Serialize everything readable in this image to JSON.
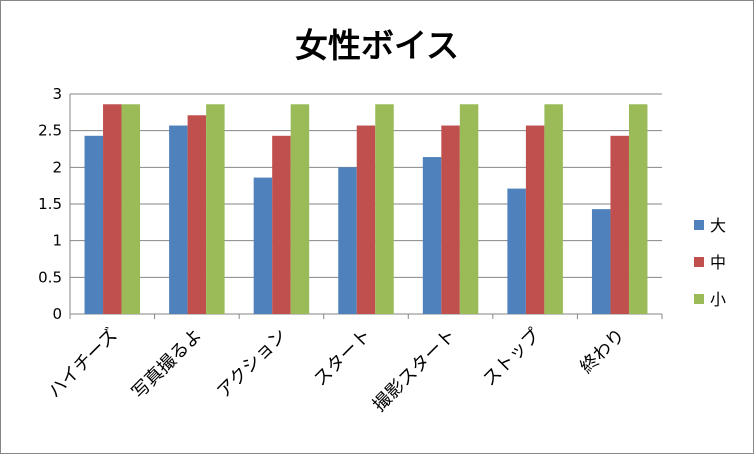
{
  "chart_data": {
    "type": "bar",
    "title": "女性ボイス",
    "categories": [
      "ハイチーズ",
      "写真撮るよ",
      "アクション",
      "スタート",
      "撮影スタート",
      "ストップ",
      "終わり"
    ],
    "series": [
      {
        "name": "大",
        "color": "#4f81bd",
        "values": [
          2.43,
          2.57,
          1.86,
          2.0,
          2.14,
          1.71,
          1.43
        ]
      },
      {
        "name": "中",
        "color": "#c0504d",
        "values": [
          2.86,
          2.71,
          2.43,
          2.57,
          2.57,
          2.57,
          2.43
        ]
      },
      {
        "name": "小",
        "color": "#9bbb59",
        "values": [
          2.86,
          2.86,
          2.86,
          2.86,
          2.86,
          2.86,
          2.86
        ]
      }
    ],
    "ylim": [
      0,
      3
    ],
    "yticks": [
      "0",
      "0.5",
      "1",
      "1.5",
      "2",
      "2.5",
      "3"
    ],
    "grid": true,
    "legend": "right"
  }
}
